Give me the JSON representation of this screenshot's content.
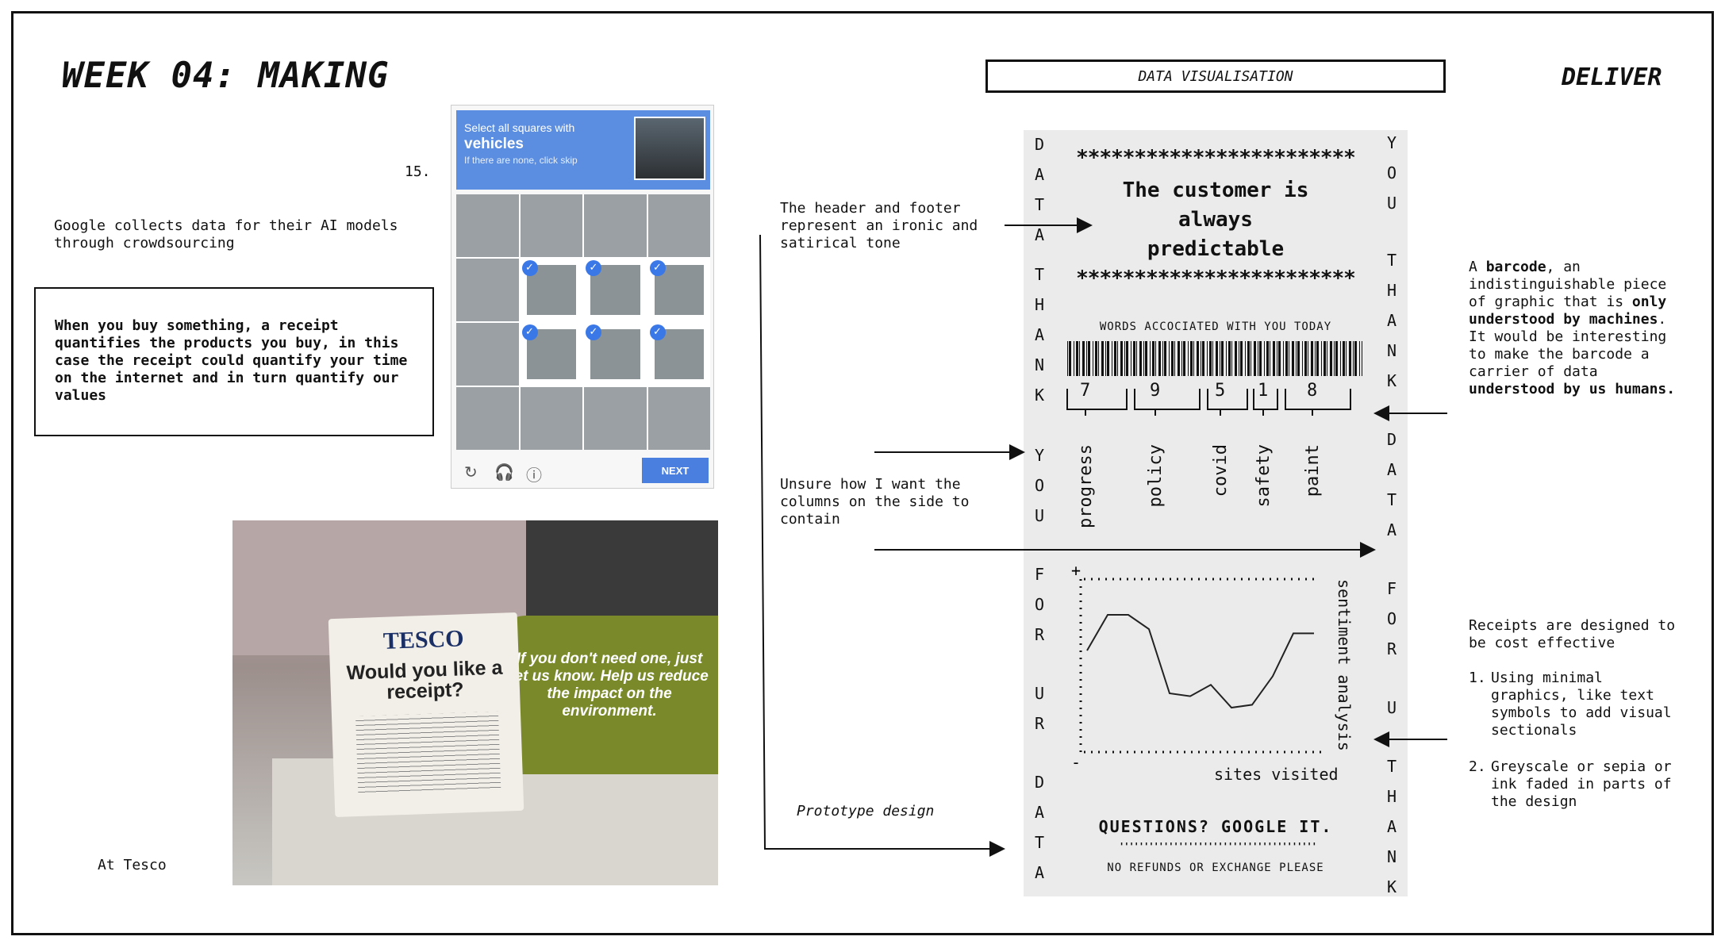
{
  "header": {
    "title": "WEEK 04: MAKING",
    "section_box": "DATA VISUALISATION",
    "phase": "DELIVER"
  },
  "left": {
    "number": "15.",
    "google_note": "Google collects data for their AI models\nthrough crowdsourcing",
    "receipt_note": "When you buy something, a receipt\nquantifies the products you buy, in this\ncase the receipt could quantify your time\non the internet and in turn quantify our\nvalues",
    "tesco_caption": "At Tesco"
  },
  "captcha": {
    "line1": "Select all squares with",
    "line2": "vehicles",
    "line3": "If there are none, click skip",
    "next_label": "NEXT",
    "selected_cells": [
      5,
      6,
      7,
      9,
      10,
      11
    ],
    "checkmark": "✓",
    "icons": [
      "reload-icon",
      "headphones-icon",
      "info-icon"
    ]
  },
  "tesco_photo": {
    "brand": "TESCO",
    "question": "Would you like a receipt?",
    "green_message": "If you don't need one, just let us know. Help us reduce the impact on the environment."
  },
  "middle": {
    "header_footer_note": "The header and footer\nrepresent an ironic and\nsatirical tone",
    "columns_note": "Unsure how I want the\ncolumns on the side to\ncontain",
    "prototype_caption": "Prototype design"
  },
  "prototype": {
    "left_column": [
      "D",
      "A",
      "T",
      "A",
      "T",
      "H",
      "A",
      "N",
      "K",
      "Y",
      "O",
      "U",
      "F",
      "O",
      "R",
      "U",
      "R",
      "D",
      "A",
      "T",
      "A"
    ],
    "right_column": [
      "Y",
      "O",
      "U",
      "T",
      "H",
      "A",
      "N",
      "K",
      "D",
      "A",
      "T",
      "A",
      "F",
      "O",
      "R",
      "U",
      "T",
      "H",
      "A",
      "N",
      "K"
    ],
    "stars": "************************",
    "slogan": "The customer is\nalways\npredictable",
    "words_heading": "WORDS ACCOCIATED WITH YOU TODAY",
    "digits": [
      "7",
      "9",
      "5",
      "1",
      "8"
    ],
    "words": [
      "progress",
      "policy",
      "covid",
      "safety",
      "paint"
    ],
    "chart_plus": "+",
    "chart_minus": "-",
    "sentiment_label": "sentiment analysis",
    "sites_label": "sites visited",
    "questions": "QUESTIONS? GOOGLE IT.",
    "dots": "''''''''''''''''''''''''''''''''''''''''",
    "no_refunds": "NO REFUNDS OR EXCHANGE PLEASE"
  },
  "chart_data": {
    "type": "line",
    "title": "",
    "xlabel": "sites visited",
    "ylabel": "sentiment analysis",
    "x": [
      1,
      2,
      3,
      4,
      5,
      6,
      7,
      8,
      9,
      10,
      11,
      12
    ],
    "values": [
      0.6,
      0.85,
      0.85,
      0.75,
      0.3,
      0.28,
      0.36,
      0.2,
      0.22,
      0.42,
      0.72,
      0.72
    ],
    "ylim": [
      0,
      1
    ],
    "grid": false
  },
  "right": {
    "barcode_note_parts": [
      {
        "t": "A ",
        "b": false
      },
      {
        "t": "barcode",
        "b": true
      },
      {
        "t": ", an\nindistinguishable piece\nof graphic that is ",
        "b": false
      },
      {
        "t": "only\nunderstood by machines",
        "b": true
      },
      {
        "t": ".\nIt would be interesting\nto make the barcode a\ncarrier of data\n",
        "b": false
      },
      {
        "t": "understood by us humans.",
        "b": true
      }
    ],
    "receipt_design_intro": "Receipts are designed to\nbe cost effective",
    "list": [
      "Using minimal\ngraphics, like text\nsymbols to add visual\nsectionals",
      "Greyscale or sepia or\nink faded in parts of\nthe design"
    ],
    "list_numbers": [
      "1.",
      "2."
    ]
  }
}
